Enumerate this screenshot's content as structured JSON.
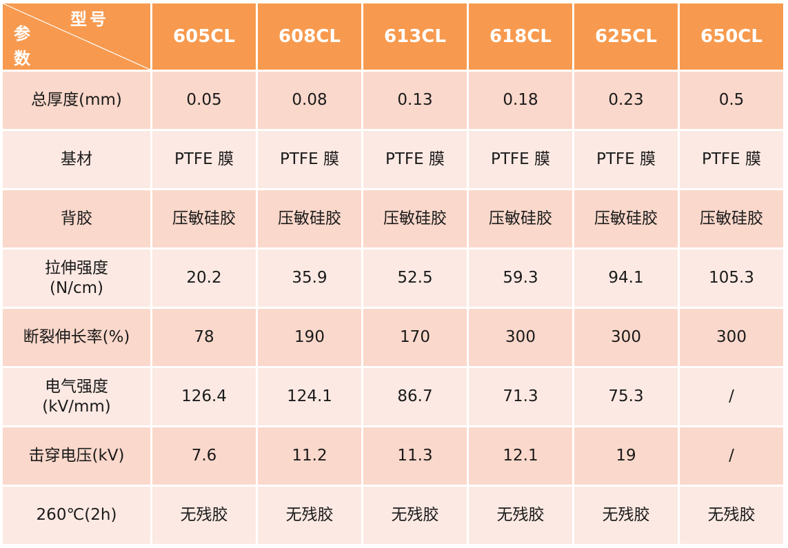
{
  "header": {
    "corner_top": "型号",
    "corner_bottom": "参数",
    "models": [
      "605CL",
      "608CL",
      "613CL",
      "618CL",
      "625CL",
      "650CL"
    ]
  },
  "rows": [
    {
      "param": "总厚度(mm)",
      "values": [
        "0.05",
        "0.08",
        "0.13",
        "0.18",
        "0.23",
        "0.5"
      ]
    },
    {
      "param": "基材",
      "values": [
        "PTFE 膜",
        "PTFE 膜",
        "PTFE 膜",
        "PTFE 膜",
        "PTFE 膜",
        "PTFE 膜"
      ]
    },
    {
      "param": "背胶",
      "values": [
        "压敏硅胶",
        "压敏硅胶",
        "压敏硅胶",
        "压敏硅胶",
        "压敏硅胶",
        "压敏硅胶"
      ]
    },
    {
      "param": "拉伸强度",
      "param_unit": "(N/cm)",
      "values": [
        "20.2",
        "35.9",
        "52.5",
        "59.3",
        "94.1",
        "105.3"
      ]
    },
    {
      "param": "断裂伸长率(%)",
      "values": [
        "78",
        "190",
        "170",
        "300",
        "300",
        "300"
      ]
    },
    {
      "param": "电气强度",
      "param_unit": "(kV/mm)",
      "values": [
        "126.4",
        "124.1",
        "86.7",
        "71.3",
        "75.3",
        "/"
      ]
    },
    {
      "param": "击穿电压(kV)",
      "values": [
        "7.6",
        "11.2",
        "11.3",
        "12.1",
        "19",
        "/"
      ]
    },
    {
      "param": "260℃(2h)",
      "values": [
        "无残胶",
        "无残胶",
        "无残胶",
        "无残胶",
        "无残胶",
        "无残胶"
      ]
    }
  ],
  "colors": {
    "header_bg": "#f79a4f",
    "row_odd_bg": "#fad8cb",
    "row_even_bg": "#fce9e3",
    "border": "#ffffff"
  }
}
